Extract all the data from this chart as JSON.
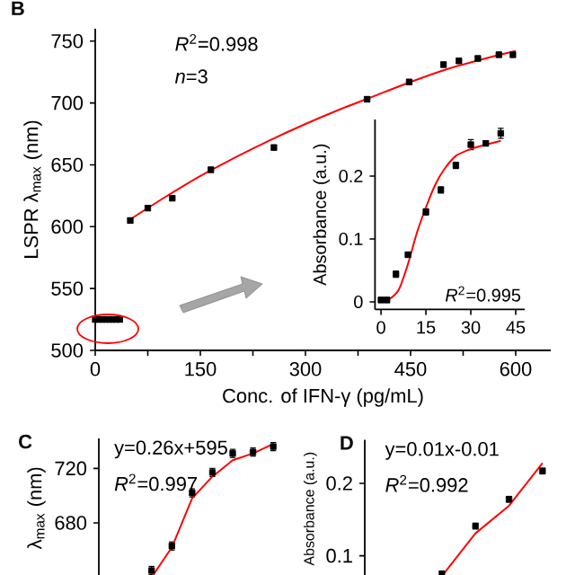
{
  "chart_data": [
    {
      "type": "scatter",
      "title": "B",
      "xlabel": "Conc. of IFN-γ (pg/mL)",
      "ylabel": "LSPR λ$_{max}$ (nm)",
      "xlim": [
        0,
        650
      ],
      "ylim": [
        500,
        760
      ],
      "xticks": [
        0,
        {
          "value": 75,
          "label": null
        },
        150,
        {
          "value": 225,
          "label": null
        },
        300,
        {
          "value": 375,
          "label": null
        },
        450,
        {
          "value": 525,
          "label": null
        },
        600
      ],
      "yticks": [
        500,
        550,
        600,
        650,
        700,
        750
      ],
      "marker": "square",
      "annotations": [
        "*R*$^{2}$=0.998",
        "*n*=3"
      ],
      "series": [
        {
          "color": "#000000",
          "x": [
            0,
            5,
            10,
            15,
            20,
            25,
            30,
            35,
            50,
            75,
            110,
            165,
            255,
            388,
            448,
            497,
            519,
            546,
            576,
            596
          ],
          "values": [
            525,
            525,
            525,
            525,
            525,
            525,
            525,
            525,
            605,
            615,
            623,
            646,
            664,
            703,
            717,
            731,
            734,
            736,
            739,
            739
          ],
          "errors": [
            2,
            2,
            2,
            2,
            2,
            2,
            2,
            2,
            2,
            2,
            2,
            2,
            2,
            2,
            2,
            2,
            2,
            2,
            2,
            2
          ]
        },
        {
          "type": "line",
          "marker": "none",
          "color": "#ff0000",
          "x": [
            50,
            100,
            150,
            200,
            250,
            300,
            350,
            400,
            450,
            500,
            550,
            600
          ],
          "values": [
            606,
            624,
            641,
            656,
            670,
            683,
            695,
            706,
            717,
            727,
            735,
            742
          ]
        }
      ]
    },
    {
      "type": "scatter",
      "ylabel": "Absorbance (a.u.)",
      "xlim": [
        -2,
        48
      ],
      "ylim": [
        -0.012,
        0.29
      ],
      "xticks": [
        0,
        15,
        30,
        45
      ],
      "yticks": [
        0,
        0.1,
        0.2
      ],
      "marker": "square",
      "annotations": [
        "*R*$^{2}$=0.995"
      ],
      "series": [
        {
          "color": "#000000",
          "x": [
            0,
            2,
            5,
            9,
            15,
            20,
            25,
            30,
            35,
            40
          ],
          "values": [
            0.003,
            0.003,
            0.044,
            0.075,
            0.143,
            0.178,
            0.217,
            0.25,
            0.252,
            0.268
          ],
          "errors": [
            0.004,
            0.004,
            0.005,
            0.004,
            0.005,
            0.005,
            0.005,
            0.008,
            0.004,
            0.008
          ]
        },
        {
          "type": "line",
          "marker": "none",
          "color": "#ff0000",
          "x": [
            0,
            3,
            6,
            9,
            12,
            15,
            18,
            21,
            25,
            30,
            35,
            40
          ],
          "values": [
            0,
            0.005,
            0.02,
            0.06,
            0.11,
            0.15,
            0.185,
            0.21,
            0.232,
            0.243,
            0.25,
            0.256
          ]
        }
      ]
    },
    {
      "type": "scatter",
      "title": "C",
      "ylabel": "λ$_{max}$ (nm)",
      "categories": [
        null,
        null,
        null,
        null,
        null,
        null,
        null
      ],
      "ylim": [
        640,
        742
      ],
      "yticks": [
        680,
        720
      ],
      "tick_labels": "y",
      "marker": "square",
      "annotations": [
        "y=0.26x+595",
        "*R*$^{2}$=0.997"
      ],
      "series": [
        {
          "color": "#000000",
          "values": [
            645,
            663,
            702,
            717,
            731,
            732,
            736
          ],
          "errors": [
            3,
            3,
            3,
            3,
            3,
            3,
            3
          ]
        },
        {
          "type": "line",
          "marker": "none",
          "color": "#ff0000",
          "values": [
            640,
            662,
            698,
            714,
            726,
            731,
            738
          ]
        }
      ]
    },
    {
      "type": "scatter",
      "title": "D",
      "ylabel": "Absorbance (a.u.)",
      "categories": [
        null,
        null,
        null,
        null
      ],
      "ylim": [
        0.07,
        0.26
      ],
      "yticks": [
        0.1,
        0.2
      ],
      "tick_labels": "y",
      "marker": "square",
      "annotations": [
        "y=0.01x-0.01",
        "*R*$^{2}$=0.992"
      ],
      "series": [
        {
          "color": "#000000",
          "values": [
            0.075,
            0.141,
            0.178,
            0.217
          ],
          "errors": [
            0.004,
            0.004,
            0.004,
            0.004
          ]
        },
        {
          "type": "line",
          "marker": "none",
          "color": "#ff0000",
          "values": [
            0.072,
            0.131,
            0.169,
            0.228
          ]
        }
      ]
    }
  ]
}
